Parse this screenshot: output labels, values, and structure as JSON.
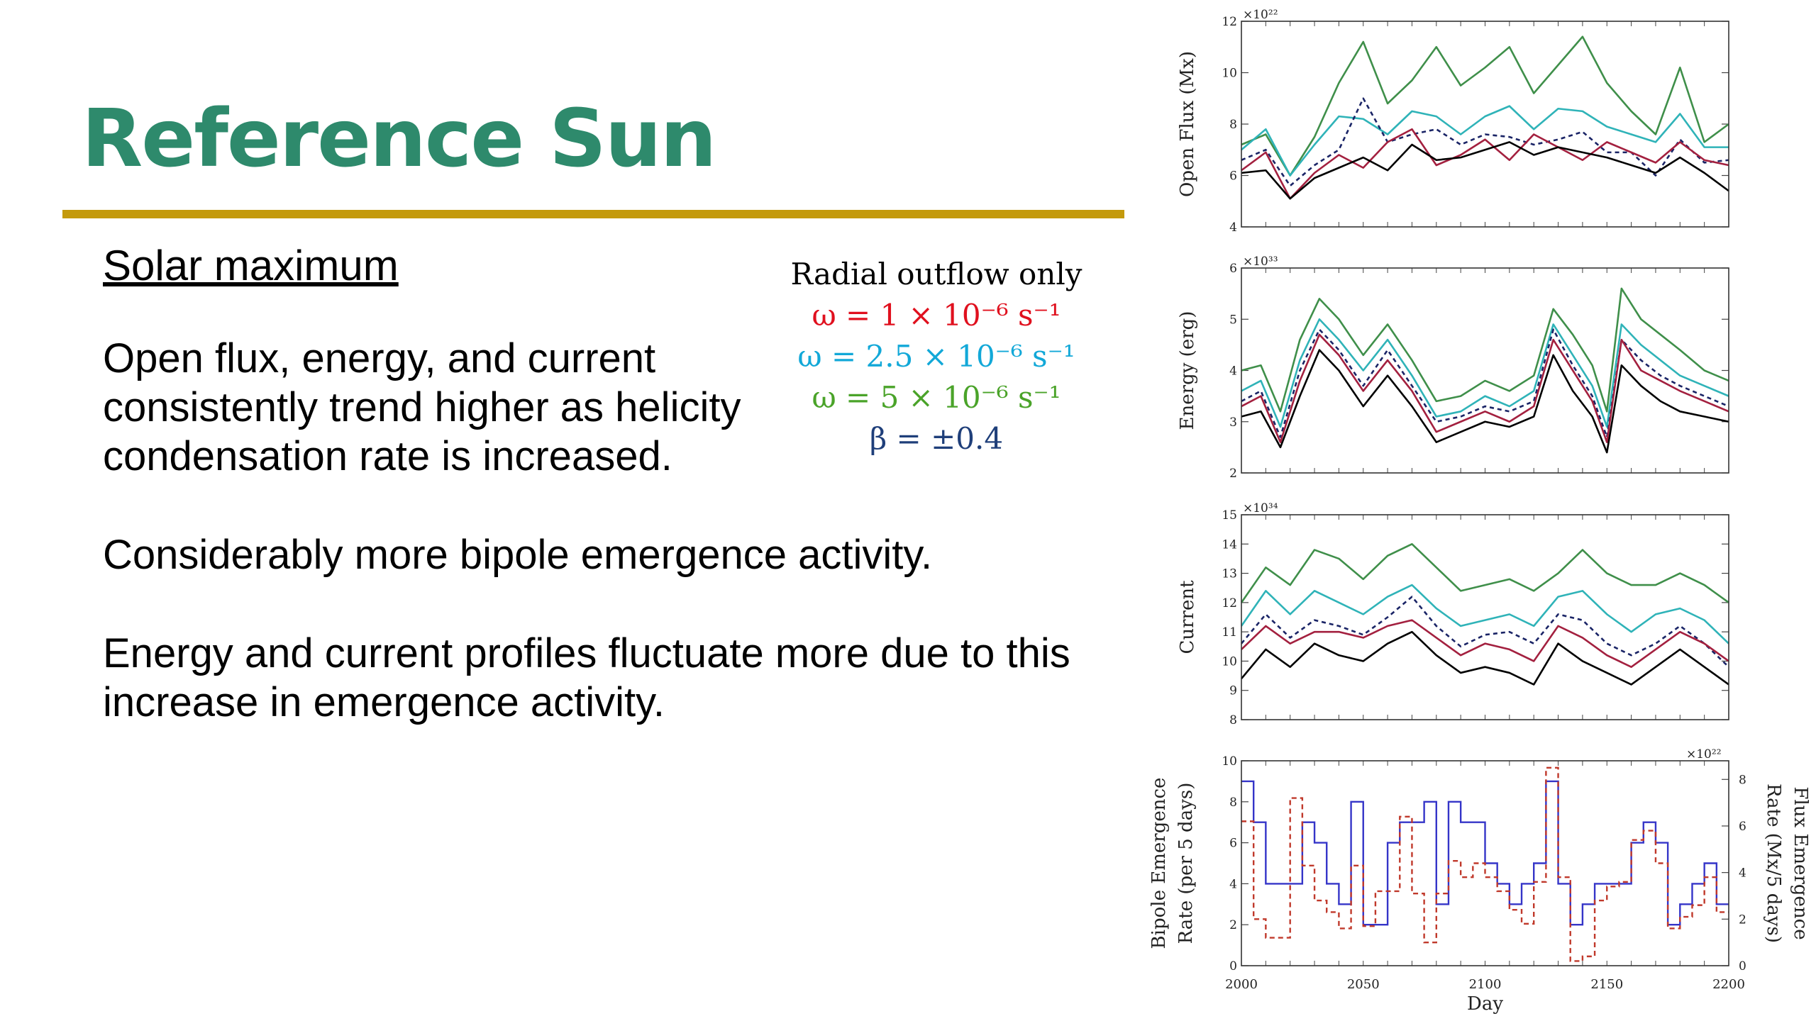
{
  "slide": {
    "title": "Reference Sun",
    "subheading": "Solar maximum",
    "paragraphs": [
      "Open flux, energy, and current consistently trend higher as helicity condensation rate is increased.",
      "Considerably more bipole emergence activity.",
      "Energy and current profiles fluctuate more due to this increase in emergence activity."
    ],
    "legend": {
      "heading": "Radial outflow only",
      "items": [
        {
          "label": "ω = 1 × 10⁻⁶ s⁻¹",
          "color": "#e0101e"
        },
        {
          "label": "ω = 2.5 × 10⁻⁶ s⁻¹",
          "color": "#12a8d8"
        },
        {
          "label": "ω = 5 × 10⁻⁶ s⁻¹",
          "color": "#4aa329"
        },
        {
          "label": "β = ±0.4",
          "color": "#1f3f7a"
        }
      ]
    }
  },
  "colors": {
    "title_green": "#2e8a6c",
    "rule_gold": "#c49a0c",
    "series_black": "#000000",
    "series_red": "#a3203f",
    "series_teal": "#2fb3b8",
    "series_green": "#3f8f4a",
    "series_navy": "#1a2466",
    "bipole_blue": "#3535c8",
    "flux_red": "#c0392b"
  },
  "chart_data": [
    {
      "type": "line",
      "ylabel": "Open Flux (Mx)",
      "multiplier": "×10²²",
      "xlim": [
        2000,
        2200
      ],
      "ylim": [
        4,
        12
      ],
      "yticks": [
        4,
        6,
        8,
        10,
        12
      ],
      "x": [
        2000,
        2010,
        2020,
        2030,
        2040,
        2050,
        2060,
        2070,
        2080,
        2090,
        2100,
        2110,
        2120,
        2130,
        2140,
        2150,
        2160,
        2170,
        2180,
        2190,
        2200
      ],
      "series": [
        {
          "color": "#3f8f4a",
          "dash": "",
          "values": [
            7.2,
            7.6,
            6.0,
            7.5,
            9.6,
            11.2,
            8.8,
            9.7,
            11.0,
            9.5,
            10.2,
            11.0,
            9.2,
            10.3,
            11.4,
            9.6,
            8.5,
            7.6,
            10.2,
            7.3,
            8.0
          ]
        },
        {
          "color": "#2fb3b8",
          "dash": "",
          "values": [
            7.0,
            7.8,
            6.0,
            7.2,
            8.3,
            8.2,
            7.6,
            8.5,
            8.3,
            7.6,
            8.3,
            8.7,
            7.8,
            8.6,
            8.5,
            7.9,
            7.6,
            7.3,
            8.4,
            7.1,
            7.1
          ]
        },
        {
          "color": "#1a2466",
          "dash": "6,5",
          "values": [
            6.6,
            7.0,
            5.6,
            6.4,
            7.0,
            9.0,
            7.3,
            7.6,
            7.8,
            7.2,
            7.6,
            7.5,
            7.2,
            7.4,
            7.7,
            6.9,
            6.9,
            6.0,
            7.4,
            6.5,
            6.6
          ]
        },
        {
          "color": "#a3203f",
          "dash": "",
          "values": [
            6.2,
            6.9,
            5.1,
            6.1,
            6.8,
            6.3,
            7.3,
            7.8,
            6.4,
            6.8,
            7.4,
            6.6,
            7.6,
            7.1,
            6.6,
            7.3,
            6.9,
            6.5,
            7.3,
            6.6,
            6.4
          ]
        },
        {
          "color": "#000000",
          "dash": "",
          "values": [
            6.1,
            6.2,
            5.1,
            5.9,
            6.3,
            6.7,
            6.2,
            7.2,
            6.6,
            6.7,
            7.0,
            7.3,
            6.8,
            7.1,
            6.9,
            6.7,
            6.4,
            6.1,
            6.7,
            6.1,
            5.4
          ]
        }
      ]
    },
    {
      "type": "line",
      "ylabel": "Energy (erg)",
      "multiplier": "×10³³",
      "xlim": [
        2000,
        2200
      ],
      "ylim": [
        2,
        6
      ],
      "yticks": [
        2,
        3,
        4,
        5,
        6
      ],
      "x": [
        2000,
        2008,
        2016,
        2024,
        2032,
        2040,
        2050,
        2060,
        2070,
        2080,
        2090,
        2100,
        2110,
        2120,
        2128,
        2136,
        2144,
        2150,
        2156,
        2164,
        2172,
        2180,
        2190,
        2200
      ],
      "series": [
        {
          "color": "#3f8f4a",
          "dash": "",
          "values": [
            4.0,
            4.1,
            3.2,
            4.6,
            5.4,
            5.0,
            4.3,
            4.9,
            4.2,
            3.4,
            3.5,
            3.8,
            3.6,
            3.9,
            5.2,
            4.7,
            4.1,
            3.2,
            5.6,
            5.0,
            4.7,
            4.4,
            4.0,
            3.8
          ]
        },
        {
          "color": "#2fb3b8",
          "dash": "",
          "values": [
            3.6,
            3.8,
            2.9,
            4.2,
            5.0,
            4.6,
            4.0,
            4.6,
            3.9,
            3.1,
            3.2,
            3.5,
            3.3,
            3.6,
            4.9,
            4.3,
            3.7,
            2.9,
            4.9,
            4.5,
            4.2,
            3.9,
            3.7,
            3.5
          ]
        },
        {
          "color": "#1a2466",
          "dash": "6,5",
          "values": [
            3.4,
            3.6,
            2.7,
            4.0,
            4.8,
            4.4,
            3.7,
            4.4,
            3.7,
            3.0,
            3.1,
            3.3,
            3.2,
            3.4,
            4.8,
            4.1,
            3.5,
            2.7,
            4.6,
            4.2,
            3.9,
            3.7,
            3.5,
            3.3
          ]
        },
        {
          "color": "#a3203f",
          "dash": "",
          "values": [
            3.3,
            3.5,
            2.6,
            3.8,
            4.7,
            4.3,
            3.6,
            4.2,
            3.6,
            2.8,
            3.0,
            3.2,
            3.0,
            3.3,
            4.6,
            4.0,
            3.4,
            2.6,
            4.6,
            4.0,
            3.8,
            3.6,
            3.4,
            3.2
          ]
        },
        {
          "color": "#000000",
          "dash": "",
          "values": [
            3.1,
            3.2,
            2.5,
            3.5,
            4.4,
            4.0,
            3.3,
            3.9,
            3.3,
            2.6,
            2.8,
            3.0,
            2.9,
            3.1,
            4.3,
            3.6,
            3.1,
            2.4,
            4.1,
            3.7,
            3.4,
            3.2,
            3.1,
            3.0
          ]
        }
      ]
    },
    {
      "type": "line",
      "ylabel": "Current",
      "multiplier": "×10³⁴",
      "xlim": [
        2000,
        2200
      ],
      "ylim": [
        8,
        15
      ],
      "yticks": [
        8,
        9,
        10,
        11,
        12,
        13,
        14,
        15
      ],
      "x": [
        2000,
        2010,
        2020,
        2030,
        2040,
        2050,
        2060,
        2070,
        2080,
        2090,
        2100,
        2110,
        2120,
        2130,
        2140,
        2150,
        2160,
        2170,
        2180,
        2190,
        2200
      ],
      "series": [
        {
          "color": "#3f8f4a",
          "dash": "",
          "values": [
            12.0,
            13.2,
            12.6,
            13.8,
            13.5,
            12.8,
            13.6,
            14.0,
            13.2,
            12.4,
            12.6,
            12.8,
            12.4,
            13.0,
            13.8,
            13.0,
            12.6,
            12.6,
            13.0,
            12.6,
            12.0
          ]
        },
        {
          "color": "#2fb3b8",
          "dash": "",
          "values": [
            11.2,
            12.4,
            11.6,
            12.4,
            12.0,
            11.6,
            12.2,
            12.6,
            11.8,
            11.2,
            11.4,
            11.6,
            11.2,
            12.2,
            12.4,
            11.6,
            11.0,
            11.6,
            11.8,
            11.4,
            10.6
          ]
        },
        {
          "color": "#1a2466",
          "dash": "6,5",
          "values": [
            10.6,
            11.6,
            10.8,
            11.4,
            11.2,
            10.9,
            11.5,
            12.2,
            11.2,
            10.5,
            10.9,
            11.0,
            10.6,
            11.6,
            11.4,
            10.6,
            10.2,
            10.6,
            11.2,
            10.6,
            9.8
          ]
        },
        {
          "color": "#a3203f",
          "dash": "",
          "values": [
            10.4,
            11.2,
            10.6,
            11.0,
            11.0,
            10.8,
            11.2,
            11.4,
            10.8,
            10.2,
            10.6,
            10.4,
            10.0,
            11.2,
            10.8,
            10.2,
            9.8,
            10.4,
            11.0,
            10.6,
            10.0
          ]
        },
        {
          "color": "#000000",
          "dash": "",
          "values": [
            9.4,
            10.4,
            9.8,
            10.6,
            10.2,
            10.0,
            10.6,
            11.0,
            10.2,
            9.6,
            9.8,
            9.6,
            9.2,
            10.6,
            10.0,
            9.6,
            9.2,
            9.8,
            10.4,
            9.8,
            9.2
          ]
        }
      ]
    },
    {
      "type": "line",
      "step": true,
      "ylabel_lines": [
        "Bipole Emergence",
        "Rate (per 5 days)"
      ],
      "y2label_lines": [
        "Flux Emergence",
        "Rate (Mx/5 days)"
      ],
      "xlabel": "Day",
      "y2_multiplier": "×10²²",
      "xlim": [
        2000,
        2200
      ],
      "xticks": [
        2000,
        2050,
        2100,
        2150,
        2200
      ],
      "ylim": [
        0,
        10
      ],
      "yticks": [
        0,
        2,
        4,
        6,
        8,
        10
      ],
      "y2lim": [
        0,
        8.8
      ],
      "y2ticks": [
        0,
        2,
        4,
        6,
        8
      ],
      "x_edges": [
        2000,
        2005,
        2010,
        2015,
        2020,
        2025,
        2030,
        2035,
        2040,
        2045,
        2050,
        2055,
        2060,
        2065,
        2070,
        2075,
        2080,
        2085,
        2090,
        2095,
        2100,
        2105,
        2110,
        2115,
        2120,
        2125,
        2130,
        2135,
        2140,
        2145,
        2150,
        2155,
        2160,
        2165,
        2170,
        2175,
        2180,
        2185,
        2190,
        2195,
        2200
      ],
      "series": [
        {
          "name": "Bipole Emergence Rate",
          "axis": "left",
          "color": "#3535c8",
          "dash": "",
          "values": [
            9,
            7,
            4,
            4,
            4,
            7,
            6,
            4,
            3,
            8,
            2,
            2,
            6,
            7,
            7,
            8,
            3,
            8,
            7,
            7,
            5,
            4,
            3,
            4,
            5,
            9,
            4,
            2,
            3,
            4,
            4,
            4,
            6,
            7,
            6,
            2,
            3,
            4,
            5,
            3
          ]
        },
        {
          "name": "Flux Emergence Rate",
          "axis": "right",
          "color": "#c0392b",
          "dash": "7,5",
          "values": [
            6.2,
            2.0,
            1.2,
            1.2,
            7.2,
            4.3,
            2.8,
            2.3,
            1.6,
            4.3,
            1.7,
            3.2,
            3.2,
            6.4,
            3.1,
            1.0,
            3.1,
            4.5,
            3.8,
            4.4,
            3.8,
            3.2,
            2.4,
            1.8,
            3.6,
            8.5,
            3.8,
            0.2,
            0.4,
            2.8,
            3.4,
            3.6,
            5.4,
            5.8,
            4.4,
            1.6,
            2.1,
            2.6,
            3.8,
            2.3
          ]
        }
      ]
    }
  ]
}
